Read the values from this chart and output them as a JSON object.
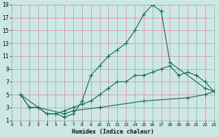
{
  "xlabel": "Humidex (Indice chaleur)",
  "bg_color": "#cce8e4",
  "grid_color": "#b8d8d4",
  "line_color": "#1a6b5a",
  "xlim": [
    0,
    23
  ],
  "ylim": [
    1,
    19
  ],
  "xticks": [
    0,
    1,
    2,
    3,
    4,
    5,
    6,
    7,
    8,
    9,
    10,
    11,
    12,
    13,
    14,
    15,
    16,
    17,
    18,
    19,
    20,
    21,
    22,
    23
  ],
  "yticks": [
    1,
    3,
    5,
    7,
    9,
    11,
    13,
    15,
    17,
    19
  ],
  "curve1_x": [
    1,
    2,
    3,
    4,
    5,
    6,
    7,
    8,
    9,
    10,
    11,
    12,
    13,
    14,
    15,
    16,
    17,
    18,
    22,
    23
  ],
  "curve1_y": [
    5,
    3,
    3,
    2,
    2,
    1.5,
    2,
    4,
    8,
    9.5,
    11,
    12,
    13,
    15,
    17.5,
    19,
    18,
    10,
    6,
    5.5
  ],
  "curve2_x": [
    1,
    2,
    3,
    4,
    5,
    6,
    7,
    8,
    9,
    10,
    11,
    12,
    13,
    14,
    15,
    16,
    17,
    18,
    19,
    20,
    21,
    22,
    23
  ],
  "curve2_y": [
    5,
    3,
    3,
    2,
    2,
    2.5,
    3,
    3.5,
    4,
    5,
    6,
    7,
    7,
    8,
    8,
    8.5,
    9,
    9.5,
    8,
    8.5,
    8,
    7,
    5.5
  ],
  "curve3_x": [
    1,
    3,
    6,
    7,
    10,
    15,
    20,
    22,
    23
  ],
  "curve3_y": [
    5,
    3,
    2,
    2.5,
    3,
    4,
    4.5,
    5,
    5.5
  ]
}
